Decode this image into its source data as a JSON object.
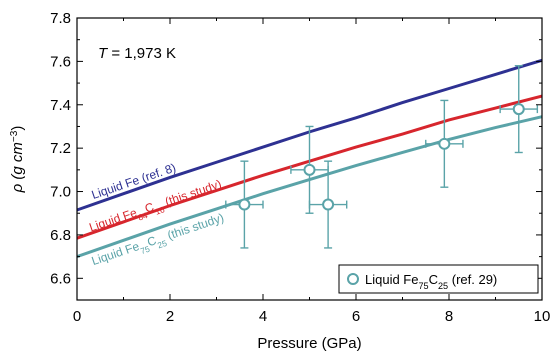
{
  "chart_data": {
    "type": "line",
    "xlabel": "Pressure (GPa)",
    "ylabel": {
      "main": "ρ (g cm",
      "sup": "−3",
      "close": ")"
    },
    "xlim": [
      0,
      10
    ],
    "ylim": [
      6.5,
      7.8
    ],
    "xticks": [
      0,
      2,
      4,
      6,
      8,
      10
    ],
    "yticks": [
      6.6,
      6.8,
      7.0,
      7.2,
      7.4,
      7.6,
      7.8
    ],
    "xtick_labels": [
      "0",
      "2",
      "4",
      "6",
      "8",
      "10"
    ],
    "ytick_labels": [
      "6.6",
      "6.8",
      "7.0",
      "7.2",
      "7.4",
      "7.6",
      "7.8"
    ],
    "annotation": {
      "italic": "T",
      "rest": " = 1,973 K"
    },
    "series": [
      {
        "name": "Liquid Fe (ref. 8)",
        "color": "#2e3192",
        "x": [
          0,
          1,
          2,
          3,
          4,
          5,
          6,
          7,
          8,
          9,
          10
        ],
        "y": [
          6.915,
          6.99,
          7.065,
          7.135,
          7.205,
          7.275,
          7.34,
          7.41,
          7.475,
          7.54,
          7.605
        ],
        "label_parts": [
          {
            "t": "Liquid Fe (ref. 8)"
          }
        ]
      },
      {
        "name": "Liquid Fe84C16 (this study)",
        "color": "#d7262d",
        "x": [
          0,
          1,
          2,
          3,
          4,
          5,
          6,
          7,
          8,
          9,
          10
        ],
        "y": [
          6.785,
          6.86,
          6.935,
          7.005,
          7.075,
          7.14,
          7.205,
          7.265,
          7.33,
          7.385,
          7.44
        ],
        "label_parts": [
          {
            "t": "Liquid Fe"
          },
          {
            "t": "84",
            "sub": true
          },
          {
            "t": "C"
          },
          {
            "t": "16",
            "sub": true
          },
          {
            "t": " (this study)"
          }
        ]
      },
      {
        "name": "Liquid Fe75C25 (this study)",
        "color": "#5aa3a8",
        "x": [
          0,
          1,
          2,
          3,
          4,
          5,
          6,
          7,
          8,
          9,
          10
        ],
        "y": [
          6.7,
          6.775,
          6.85,
          6.92,
          6.99,
          7.055,
          7.12,
          7.18,
          7.24,
          7.295,
          7.345
        ],
        "label_parts": [
          {
            "t": "Liquid Fe"
          },
          {
            "t": "75",
            "sub": true
          },
          {
            "t": "C"
          },
          {
            "t": "25",
            "sub": true
          },
          {
            "t": " (this study)"
          }
        ]
      }
    ],
    "points": {
      "name": "Liquid Fe75C25 (ref. 29)",
      "color": "#5aa3a8",
      "data": [
        {
          "x": 3.6,
          "y": 6.94,
          "xerr": 0.4,
          "yerr": 0.2
        },
        {
          "x": 5.0,
          "y": 7.1,
          "xerr": 0.4,
          "yerr": 0.2
        },
        {
          "x": 5.4,
          "y": 6.94,
          "xerr": 0.4,
          "yerr": 0.2
        },
        {
          "x": 7.9,
          "y": 7.22,
          "xerr": 0.4,
          "yerr": 0.2
        },
        {
          "x": 9.5,
          "y": 7.38,
          "xerr": 0.4,
          "yerr": 0.2
        }
      ]
    },
    "legend": {
      "placement": "bottom-right",
      "parts": [
        {
          "t": "Liquid Fe"
        },
        {
          "t": "75",
          "sub": true
        },
        {
          "t": "C"
        },
        {
          "t": "25",
          "sub": true
        },
        {
          "t": " (ref. 29)"
        }
      ]
    }
  }
}
